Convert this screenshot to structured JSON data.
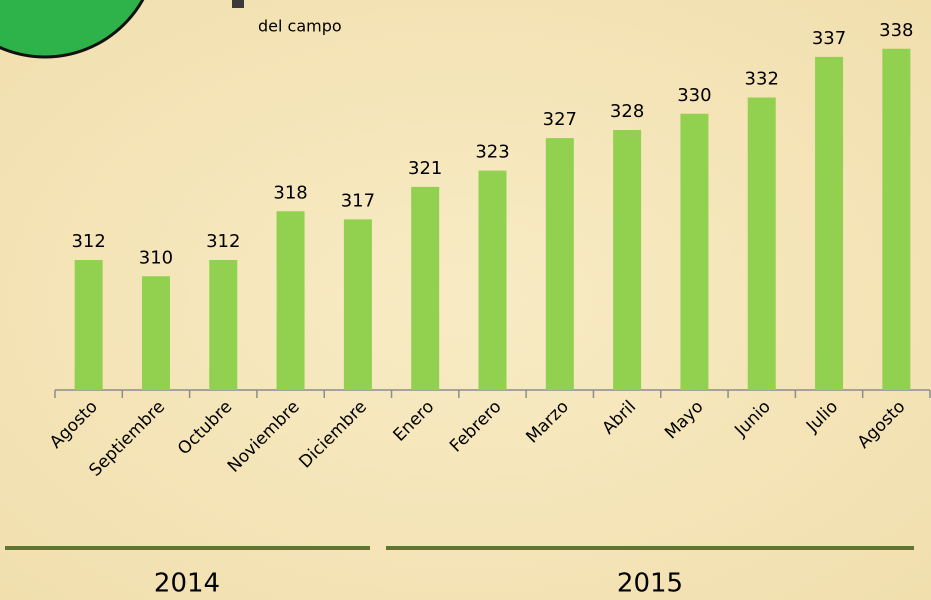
{
  "chart_data": {
    "type": "bar",
    "categories": [
      "Agosto",
      "Septiembre",
      "Octubre",
      "Noviembre",
      "Diciembre",
      "Enero",
      "Febrero",
      "Marzo",
      "Abril",
      "Mayo",
      "Junio",
      "Julio",
      "Agosto"
    ],
    "series": [
      {
        "name": "del campo",
        "color": "#92d050",
        "values": [
          312,
          310,
          312,
          318,
          317,
          321,
          323,
          327,
          328,
          330,
          332,
          337,
          338
        ]
      }
    ],
    "ylim": [
      296,
      344
    ],
    "groups": [
      "2014",
      "2015"
    ]
  }
}
